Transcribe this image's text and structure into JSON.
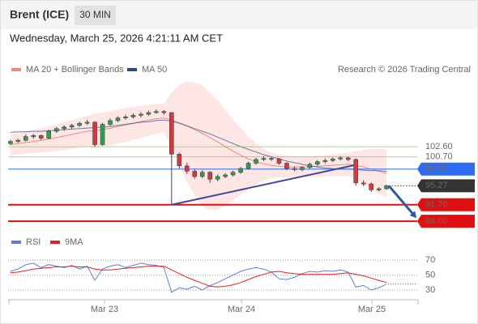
{
  "header": {
    "title": "Brent (ICE)",
    "interval": "30 MIN",
    "datetime": "Wednesday, March 25, 2026 4:21:11 AM CET",
    "source": "Research © 2026 Trading Central"
  },
  "chart_data": [
    {
      "type": "candlestick",
      "up_color": "#2e9e4f",
      "down_color": "#d9363e",
      "xlim": [
        -0.3,
        53
      ],
      "ylim": [
        86.8,
        115.7
      ],
      "open": [
        103.2,
        103.6,
        103.8,
        104.5,
        104.7,
        104.2,
        105.5,
        106.0,
        106.3,
        106.6,
        107.0,
        107.2,
        103.0,
        106.8,
        107.5,
        108.0,
        108.2,
        108.5,
        108.7,
        109.0,
        109.2,
        109.0,
        101.2,
        99.0,
        98.0,
        97.0,
        97.8,
        96.5,
        97.0,
        97.3,
        97.8,
        98.5,
        99.5,
        100.2,
        100.4,
        100.3,
        99.5,
        98.5,
        98.3,
        98.7,
        99.3,
        99.8,
        100.0,
        100.3,
        100.5,
        100.2,
        95.8,
        95.6,
        94.5,
        94.7
      ],
      "high": [
        103.9,
        104.1,
        104.9,
        105.0,
        104.9,
        105.8,
        106.3,
        106.6,
        106.9,
        107.3,
        107.6,
        107.4,
        107.1,
        107.9,
        108.3,
        108.6,
        108.9,
        109.1,
        109.4,
        109.6,
        109.5,
        109.1,
        101.5,
        99.6,
        98.4,
        98.2,
        98.0,
        97.4,
        97.6,
        98.1,
        98.8,
        99.8,
        100.5,
        100.8,
        100.7,
        100.5,
        99.7,
        98.9,
        99.0,
        99.6,
        100.1,
        100.4,
        100.6,
        100.8,
        100.7,
        100.4,
        96.3,
        95.9,
        95.0,
        95.5
      ],
      "low": [
        102.9,
        103.3,
        103.6,
        104.1,
        103.8,
        104.0,
        105.2,
        105.6,
        105.9,
        106.3,
        106.7,
        102.6,
        102.8,
        106.5,
        107.2,
        107.7,
        107.9,
        108.1,
        108.4,
        108.8,
        108.6,
        91.7,
        98.5,
        97.5,
        96.6,
        96.7,
        95.8,
        96.1,
        96.7,
        97.0,
        97.5,
        98.3,
        99.2,
        99.9,
        99.9,
        99.2,
        98.2,
        98.0,
        98.0,
        98.4,
        99.0,
        99.5,
        99.7,
        100.0,
        99.9,
        95.3,
        95.2,
        94.1,
        94.2,
        94.5
      ],
      "close": [
        103.6,
        103.8,
        104.5,
        104.7,
        104.2,
        105.5,
        106.0,
        106.3,
        106.6,
        107.0,
        107.2,
        103.0,
        106.8,
        107.5,
        108.0,
        108.2,
        108.5,
        108.7,
        109.0,
        109.2,
        109.0,
        101.2,
        99.0,
        98.0,
        97.0,
        97.8,
        96.5,
        97.0,
        97.3,
        97.8,
        98.5,
        99.5,
        100.2,
        100.4,
        100.3,
        99.5,
        98.5,
        98.3,
        98.7,
        99.3,
        99.8,
        100.0,
        100.3,
        100.5,
        100.2,
        95.8,
        95.6,
        94.5,
        94.7,
        95.27
      ],
      "bands": {
        "name": "MA 20 + Bollinger Bands",
        "color": "#f08a80",
        "fill": "#fde0dd",
        "middle": [
          103.0,
          103.2,
          103.4,
          103.6,
          103.8,
          104.0,
          104.3,
          104.6,
          104.9,
          105.2,
          105.5,
          105.6,
          105.8,
          106.1,
          106.4,
          106.7,
          107.0,
          107.3,
          107.6,
          107.8,
          108.0,
          107.6,
          107.1,
          106.5,
          105.8,
          105.1,
          104.3,
          103.5,
          102.6,
          101.8,
          101.0,
          100.3,
          99.8,
          99.4,
          99.1,
          98.9,
          98.8,
          98.8,
          98.8,
          98.8,
          98.9,
          99.0,
          99.1,
          99.2,
          99.3,
          99.1,
          98.8,
          98.4,
          98.0,
          97.6
        ],
        "upper": [
          105.0,
          105.2,
          105.5,
          105.8,
          106.1,
          106.4,
          106.8,
          107.2,
          107.6,
          108.0,
          108.4,
          108.8,
          109.0,
          109.3,
          109.6,
          109.9,
          110.1,
          110.3,
          110.5,
          110.6,
          110.7,
          112.8,
          114.2,
          114.9,
          114.7,
          114.0,
          112.8,
          111.3,
          109.5,
          107.7,
          106.0,
          104.5,
          103.2,
          102.2,
          101.5,
          101.1,
          100.9,
          100.8,
          100.8,
          100.8,
          100.9,
          101.0,
          101.2,
          101.3,
          101.5,
          101.8,
          102.0,
          102.1,
          102.2,
          102.2
        ],
        "lower": [
          101.0,
          101.2,
          101.3,
          101.4,
          101.5,
          101.6,
          101.8,
          102.0,
          102.2,
          102.4,
          102.6,
          102.4,
          102.6,
          102.9,
          103.2,
          103.5,
          103.9,
          104.3,
          104.7,
          105.0,
          105.3,
          102.4,
          99.5,
          96.0,
          93.5,
          91.5,
          90.7,
          90.8,
          91.6,
          92.6,
          93.6,
          94.6,
          95.5,
          96.2,
          96.7,
          96.8,
          96.8,
          96.9,
          96.9,
          96.9,
          96.9,
          97.0,
          97.0,
          97.1,
          97.1,
          96.4,
          95.5,
          94.6,
          93.8,
          93.0
        ]
      },
      "series": [
        {
          "name": "MA 50",
          "color": "#2c4a8a",
          "values": [
            105.3,
            105.4,
            105.4,
            105.5,
            105.5,
            105.6,
            105.7,
            105.8,
            105.9,
            106.0,
            106.1,
            106.2,
            106.3,
            106.4,
            106.6,
            106.8,
            107.0,
            107.2,
            107.3,
            107.5,
            107.6,
            107.4,
            107.0,
            106.5,
            106.0,
            105.5,
            105.0,
            104.4,
            103.8,
            103.2,
            102.6,
            102.1,
            101.6,
            101.1,
            100.7,
            100.3,
            99.9,
            99.6,
            99.3,
            99.0,
            98.8,
            98.6,
            98.5,
            98.4,
            98.4,
            98.3,
            98.2,
            98.1,
            98.1,
            98.0
          ]
        }
      ],
      "levels": [
        {
          "value": 102.6,
          "label": "102.60",
          "color": "#6abf4b",
          "boxed": false,
          "line": "solid",
          "weight": 1
        },
        {
          "value": 100.7,
          "label": "100.70",
          "color": "#6abf4b",
          "boxed": false,
          "line": "solid",
          "weight": 1
        },
        {
          "value": 98.4,
          "label": "98.40",
          "color": "#2f6bf0",
          "boxed": true,
          "line": "solid",
          "weight": 1
        },
        {
          "value": 95.27,
          "label": "95.27",
          "color": "#333333",
          "boxed": true,
          "line": "dotted",
          "weight": 1
        },
        {
          "value": 91.7,
          "label": "91.70",
          "color": "#e01010",
          "boxed": true,
          "line": "solid",
          "weight": 2
        },
        {
          "value": 88.6,
          "label": "88.60",
          "color": "#e01010",
          "boxed": true,
          "line": "solid",
          "weight": 2
        }
      ],
      "trendline": {
        "color": "#3d4a9c",
        "x": [
          21,
          45
        ],
        "y": [
          91.7,
          99.2
        ]
      },
      "arrow": {
        "color": "#2c5aa0",
        "x": [
          49.3,
          52.9
        ],
        "y": [
          95.27,
          89.2
        ]
      }
    },
    {
      "type": "line",
      "xlim": [
        -0.3,
        53
      ],
      "ylim": [
        17,
        93
      ],
      "yticks": [
        70,
        50,
        30
      ],
      "xticks": [
        {
          "value": 12.26,
          "label": "Mar 23"
        },
        {
          "value": 30.1,
          "label": "Mar 24"
        },
        {
          "value": 47.09,
          "label": "Mar 25"
        }
      ],
      "series": [
        {
          "name": "RSI",
          "color": "#5b7fd6",
          "values": [
            55,
            58,
            64,
            66,
            60,
            64,
            62,
            60,
            63,
            58,
            62,
            43,
            58,
            62,
            64,
            60,
            63,
            66,
            64,
            63,
            60,
            27,
            33,
            31,
            35,
            30,
            36,
            40,
            45,
            50,
            55,
            58,
            60,
            58,
            54,
            45,
            44,
            47,
            52,
            55,
            54,
            56,
            55,
            57,
            54,
            34,
            36,
            30,
            33,
            38
          ]
        },
        {
          "name": "9MA",
          "color": "#e02020",
          "values": [
            53,
            54,
            56,
            58,
            59,
            60,
            61,
            61,
            62,
            61,
            61,
            58,
            57,
            57,
            58,
            59,
            60,
            61,
            62,
            62,
            62,
            57,
            52,
            47,
            43,
            39,
            35,
            34,
            35,
            37,
            40,
            44,
            48,
            51,
            54,
            55,
            53,
            52,
            51,
            51,
            51,
            51,
            51,
            52,
            53,
            51,
            49,
            46,
            43,
            40
          ]
        }
      ]
    }
  ]
}
